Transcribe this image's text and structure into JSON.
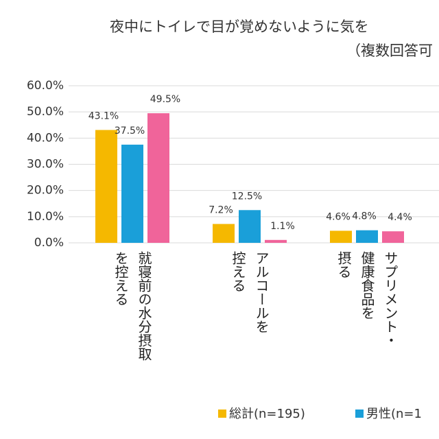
{
  "chart_data": {
    "type": "bar",
    "title": "夜中にトイレで目が覚めないように気を",
    "subtitle": "（複数回答可",
    "categories": [
      "就寝前の水分摂取\nを控える",
      "アルコールを\n控える",
      "サプリメント・\n健康食品を\n摂る"
    ],
    "series": [
      {
        "name": "総計(n=195)",
        "color": "#f5b800",
        "values": [
          43.1,
          7.2,
          4.6
        ],
        "value_labels": [
          "43.1%",
          "7.2%",
          "4.6%"
        ]
      },
      {
        "name": "男性(n=1",
        "color": "#1a9fd9",
        "values": [
          37.5,
          12.5,
          4.8
        ],
        "value_labels": [
          "37.5%",
          "12.5%",
          "4.8%"
        ]
      },
      {
        "color": "#f0649a",
        "values": [
          49.5,
          1.1,
          4.4
        ],
        "value_labels": [
          "49.5%",
          "1.1%",
          "4.4%"
        ]
      }
    ],
    "ylim": [
      0,
      60
    ],
    "yticks": [
      {
        "value": 0,
        "label": "0.0%"
      },
      {
        "value": 10,
        "label": "10.0%"
      },
      {
        "value": 20,
        "label": "20.0%"
      },
      {
        "value": 30,
        "label": "30.0%"
      },
      {
        "value": 40,
        "label": "40.0%"
      },
      {
        "value": 50,
        "label": "50.0%"
      },
      {
        "value": 60,
        "label": "60.0%"
      }
    ],
    "grid": true
  }
}
